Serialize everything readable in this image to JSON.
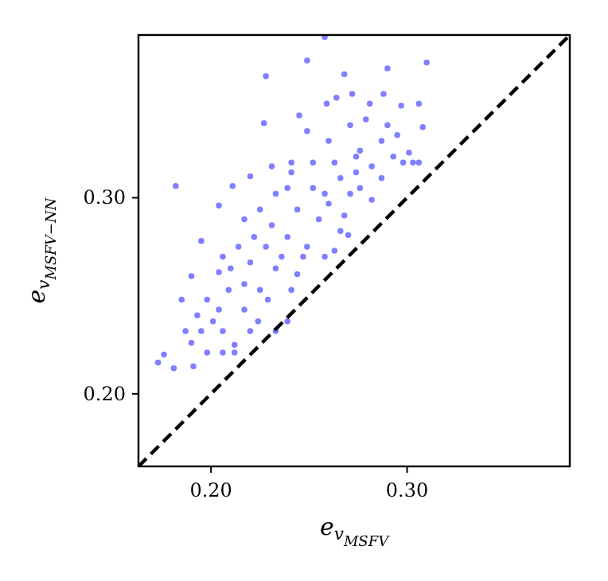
{
  "chart_data": {
    "type": "scatter",
    "xlabel": "e$_{v}$$_{MSFV}$",
    "ylabel": "e$_{v}$$_{MSFV−NN}$",
    "xlim": [
      0.163,
      0.383
    ],
    "ylim": [
      0.163,
      0.383
    ],
    "xticks": [
      {
        "value": 0.2,
        "label": "0.20"
      },
      {
        "value": 0.3,
        "label": "0.30"
      }
    ],
    "yticks": [
      {
        "value": 0.2,
        "label": "0.20"
      },
      {
        "value": 0.3,
        "label": "0.30"
      }
    ],
    "grid": false,
    "series": [
      {
        "type": "scatter",
        "color": "#0000ff",
        "marker": "circle",
        "x": [
          0.182,
          0.228,
          0.249,
          0.31,
          0.258,
          0.29,
          0.268,
          0.227,
          0.272,
          0.288,
          0.306,
          0.308,
          0.181,
          0.173,
          0.176,
          0.306,
          0.301,
          0.295,
          0.303,
          0.27,
          0.263,
          0.241,
          0.239,
          0.233,
          0.224,
          0.212,
          0.206,
          0.198,
          0.191,
          0.185,
          0.19,
          0.195,
          0.204,
          0.211,
          0.22,
          0.231,
          0.241,
          0.245,
          0.259,
          0.264,
          0.281,
          0.297,
          0.228,
          0.231,
          0.244,
          0.252,
          0.258,
          0.266,
          0.274,
          0.276,
          0.282,
          0.236,
          0.22,
          0.217,
          0.209,
          0.204,
          0.201,
          0.195,
          0.19,
          0.222,
          0.239,
          0.249,
          0.255,
          0.26,
          0.271,
          0.276,
          0.287,
          0.287,
          0.279,
          0.271,
          0.249,
          0.252,
          0.239,
          0.225,
          0.214,
          0.21,
          0.233,
          0.247,
          0.225,
          0.217,
          0.206,
          0.204,
          0.258,
          0.244,
          0.268,
          0.282,
          0.293,
          0.298,
          0.29,
          0.26,
          0.241,
          0.233,
          0.217,
          0.206,
          0.198,
          0.193,
          0.187,
          0.229,
          0.22,
          0.212,
          0.266,
          0.274,
          0.263
        ],
        "values": [
          0.306,
          0.362,
          0.37,
          0.369,
          0.382,
          0.366,
          0.363,
          0.338,
          0.353,
          0.353,
          0.348,
          0.336,
          0.213,
          0.216,
          0.22,
          0.318,
          0.323,
          0.332,
          0.318,
          0.281,
          0.273,
          0.253,
          0.237,
          0.232,
          0.237,
          0.225,
          0.221,
          0.221,
          0.214,
          0.248,
          0.26,
          0.278,
          0.296,
          0.306,
          0.311,
          0.316,
          0.318,
          0.342,
          0.348,
          0.351,
          0.348,
          0.347,
          0.275,
          0.286,
          0.294,
          0.305,
          0.302,
          0.31,
          0.321,
          0.324,
          0.316,
          0.27,
          0.267,
          0.256,
          0.253,
          0.243,
          0.237,
          0.232,
          0.226,
          0.28,
          0.28,
          0.275,
          0.289,
          0.297,
          0.302,
          0.305,
          0.31,
          0.329,
          0.34,
          0.337,
          0.334,
          0.318,
          0.305,
          0.294,
          0.275,
          0.264,
          0.264,
          0.27,
          0.253,
          0.243,
          0.232,
          0.262,
          0.27,
          0.261,
          0.291,
          0.299,
          0.321,
          0.318,
          0.337,
          0.329,
          0.313,
          0.302,
          0.289,
          0.27,
          0.248,
          0.24,
          0.232,
          0.248,
          0.232,
          0.221,
          0.283,
          0.313,
          0.318
        ]
      },
      {
        "type": "line",
        "color": "#000000",
        "line_style": "dashed",
        "x": [
          0.163,
          0.383
        ],
        "values": [
          0.163,
          0.383
        ]
      }
    ]
  }
}
